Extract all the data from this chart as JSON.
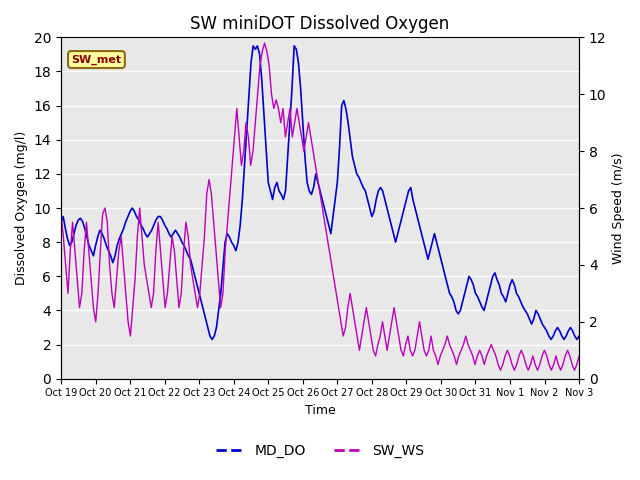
{
  "title": "SW miniDOT Dissolved Oxygen",
  "ylabel_left": "Dissolved Oxygen (mg/l)",
  "ylabel_right": "Wind Speed (m/s)",
  "xlabel": "Time",
  "ylim_left": [
    0,
    20
  ],
  "ylim_right": [
    0,
    12
  ],
  "yticks_left": [
    0,
    2,
    4,
    6,
    8,
    10,
    12,
    14,
    16,
    18,
    20
  ],
  "yticks_right": [
    0,
    2,
    4,
    6,
    8,
    10,
    12
  ],
  "annotation_text": "SW_met",
  "annotation_bg": "#FFFFA0",
  "annotation_text_color": "#8B0000",
  "annotation_border_color": "#8B6914",
  "bg_color": "#E8E8E8",
  "line_do_color": "#0000CC",
  "line_ws_color": "#BB00BB",
  "legend_labels": [
    "MD_DO",
    "SW_WS"
  ],
  "xtick_labels": [
    "Oct 19",
    "Oct 20",
    "Oct 21",
    "Oct 22",
    "Oct 23",
    "Oct 24",
    "Oct 25",
    "Oct 26",
    "Oct 27",
    "Oct 28",
    "Oct 29",
    "Oct 30",
    "Oct 31",
    "Nov 1",
    "Nov 2",
    "Nov 3"
  ],
  "do_data": [
    9.2,
    9.5,
    8.8,
    8.2,
    7.8,
    8.0,
    8.5,
    9.0,
    9.3,
    9.4,
    9.2,
    8.8,
    8.3,
    7.8,
    7.5,
    7.2,
    7.8,
    8.3,
    8.7,
    8.5,
    8.2,
    7.8,
    7.5,
    7.2,
    6.8,
    7.2,
    7.8,
    8.2,
    8.5,
    8.8,
    9.2,
    9.5,
    9.8,
    10.0,
    9.8,
    9.5,
    9.3,
    9.0,
    8.8,
    8.5,
    8.3,
    8.5,
    8.7,
    9.0,
    9.3,
    9.5,
    9.5,
    9.3,
    9.0,
    8.8,
    8.5,
    8.3,
    8.5,
    8.7,
    8.5,
    8.3,
    8.0,
    7.8,
    7.5,
    7.2,
    7.0,
    6.5,
    6.0,
    5.5,
    5.0,
    4.5,
    4.0,
    3.5,
    3.0,
    2.5,
    2.3,
    2.5,
    3.0,
    4.0,
    5.0,
    6.5,
    8.0,
    8.5,
    8.3,
    8.0,
    7.8,
    7.5,
    8.0,
    9.0,
    10.5,
    12.5,
    14.5,
    16.5,
    18.5,
    19.5,
    19.3,
    19.5,
    19.0,
    17.5,
    15.5,
    13.5,
    11.5,
    11.0,
    10.5,
    11.2,
    11.5,
    11.0,
    10.8,
    10.5,
    11.0,
    13.0,
    15.0,
    17.0,
    19.5,
    19.3,
    18.5,
    17.0,
    15.0,
    13.0,
    11.5,
    11.0,
    10.8,
    11.2,
    12.0,
    11.5,
    11.0,
    10.5,
    10.0,
    9.5,
    9.0,
    8.5,
    9.5,
    10.5,
    11.5,
    13.5,
    16.0,
    16.3,
    15.8,
    15.0,
    14.0,
    13.0,
    12.5,
    12.0,
    11.8,
    11.5,
    11.2,
    11.0,
    10.5,
    10.0,
    9.5,
    9.8,
    10.5,
    11.0,
    11.2,
    11.0,
    10.5,
    10.0,
    9.5,
    9.0,
    8.5,
    8.0,
    8.5,
    9.0,
    9.5,
    10.0,
    10.5,
    11.0,
    11.2,
    10.5,
    10.0,
    9.5,
    9.0,
    8.5,
    8.0,
    7.5,
    7.0,
    7.5,
    8.0,
    8.5,
    8.0,
    7.5,
    7.0,
    6.5,
    6.0,
    5.5,
    5.0,
    4.8,
    4.5,
    4.0,
    3.8,
    4.0,
    4.5,
    5.0,
    5.5,
    6.0,
    5.8,
    5.5,
    5.0,
    4.8,
    4.5,
    4.2,
    4.0,
    4.5,
    5.0,
    5.5,
    6.0,
    6.2,
    5.8,
    5.5,
    5.0,
    4.8,
    4.5,
    5.0,
    5.5,
    5.8,
    5.5,
    5.0,
    4.8,
    4.5,
    4.2,
    4.0,
    3.8,
    3.5,
    3.2,
    3.5,
    4.0,
    3.8,
    3.5,
    3.2,
    3.0,
    2.8,
    2.5,
    2.3,
    2.5,
    2.8,
    3.0,
    2.8,
    2.5,
    2.3,
    2.5,
    2.8,
    3.0,
    2.8,
    2.5,
    2.3,
    2.5
  ],
  "ws_data": [
    5.8,
    5.0,
    4.0,
    3.0,
    4.5,
    5.5,
    4.5,
    3.5,
    2.5,
    3.0,
    4.5,
    5.5,
    4.5,
    3.5,
    2.5,
    2.0,
    3.0,
    4.5,
    5.8,
    6.0,
    5.5,
    4.0,
    3.0,
    2.5,
    3.5,
    4.5,
    5.0,
    4.0,
    3.0,
    2.0,
    1.5,
    2.5,
    3.5,
    5.0,
    6.0,
    5.0,
    4.0,
    3.5,
    3.0,
    2.5,
    3.0,
    4.5,
    5.5,
    4.5,
    3.5,
    2.5,
    3.0,
    4.0,
    5.0,
    4.5,
    3.5,
    2.5,
    3.0,
    4.5,
    5.5,
    5.0,
    4.0,
    3.5,
    3.0,
    2.5,
    3.0,
    4.0,
    5.0,
    6.5,
    7.0,
    6.5,
    5.5,
    4.5,
    3.5,
    2.5,
    3.0,
    4.5,
    5.5,
    6.5,
    7.5,
    8.5,
    9.5,
    8.5,
    7.5,
    8.0,
    9.0,
    8.5,
    7.5,
    8.0,
    9.0,
    10.0,
    11.0,
    11.5,
    11.8,
    11.5,
    11.0,
    10.0,
    9.5,
    9.8,
    9.5,
    9.0,
    9.5,
    8.5,
    9.0,
    9.5,
    8.5,
    9.0,
    9.5,
    9.0,
    8.5,
    8.0,
    8.5,
    9.0,
    8.5,
    8.0,
    7.5,
    7.0,
    6.5,
    6.0,
    5.5,
    5.0,
    4.5,
    4.0,
    3.5,
    3.0,
    2.5,
    2.0,
    1.5,
    1.8,
    2.5,
    3.0,
    2.5,
    2.0,
    1.5,
    1.0,
    1.5,
    2.0,
    2.5,
    2.0,
    1.5,
    1.0,
    0.8,
    1.2,
    1.5,
    2.0,
    1.5,
    1.0,
    1.5,
    2.0,
    2.5,
    2.0,
    1.5,
    1.0,
    0.8,
    1.2,
    1.5,
    1.0,
    0.8,
    1.0,
    1.5,
    2.0,
    1.5,
    1.0,
    0.8,
    1.0,
    1.5,
    1.0,
    0.8,
    0.5,
    0.8,
    1.0,
    1.2,
    1.5,
    1.2,
    1.0,
    0.8,
    0.5,
    0.8,
    1.0,
    1.2,
    1.5,
    1.2,
    1.0,
    0.8,
    0.5,
    0.8,
    1.0,
    0.8,
    0.5,
    0.8,
    1.0,
    1.2,
    1.0,
    0.8,
    0.5,
    0.3,
    0.5,
    0.8,
    1.0,
    0.8,
    0.5,
    0.3,
    0.5,
    0.8,
    1.0,
    0.8,
    0.5,
    0.3,
    0.5,
    0.8,
    0.5,
    0.3,
    0.5,
    0.8,
    1.0,
    0.8,
    0.5,
    0.3,
    0.5,
    0.8,
    0.5,
    0.3,
    0.5,
    0.8,
    1.0,
    0.8,
    0.5,
    0.3,
    0.5,
    0.8
  ]
}
